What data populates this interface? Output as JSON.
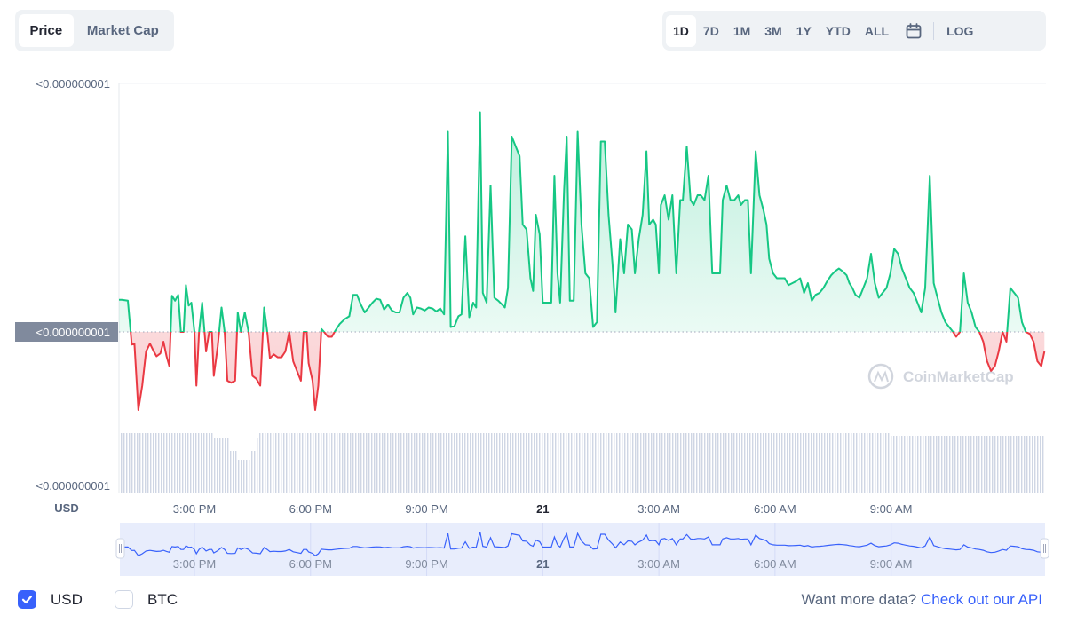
{
  "tabs": [
    {
      "label": "Price",
      "active": true
    },
    {
      "label": "Market Cap",
      "active": false
    }
  ],
  "ranges": [
    {
      "label": "1D",
      "active": true
    },
    {
      "label": "7D",
      "active": false
    },
    {
      "label": "1M",
      "active": false
    },
    {
      "label": "3M",
      "active": false
    },
    {
      "label": "1Y",
      "active": false
    },
    {
      "label": "YTD",
      "active": false
    },
    {
      "label": "ALL",
      "active": false
    }
  ],
  "calendar_icon": "calendar-icon",
  "log_label": "LOG",
  "footer": {
    "usd_label": "USD",
    "btc_label": "BTC",
    "usd_checked": true,
    "btc_checked": false,
    "api_prefix": "Want more data?",
    "api_link": "Check out our API"
  },
  "colors": {
    "up": "#16c784",
    "down": "#ea3943",
    "accent": "#3861fb",
    "volume": "#cfd6e4",
    "navigator": "#e3e9fe"
  },
  "chart_data": {
    "type": "line",
    "watermark": "CoinMarketCap",
    "y_ticks": [
      "<0.000000001",
      "<0.000000001",
      "<0.000000001"
    ],
    "current_price_label": "<0.000000001",
    "y_unit": "USD",
    "baseline": 0.0,
    "ylim": [
      -1.0,
      2.4
    ],
    "x_ticks": [
      "3:00 PM",
      "6:00 PM",
      "9:00 PM",
      "21",
      "3:00 AM",
      "6:00 AM",
      "9:00 AM"
    ],
    "x_tick_hours": [
      15,
      18,
      21,
      24,
      27,
      30,
      33
    ],
    "xlim_hours": [
      13.05,
      37.0
    ],
    "navigator_ticks": [
      "3:00 PM",
      "6:00 PM",
      "9:00 PM",
      "21",
      "3:00 AM",
      "6:00 AM",
      "9:00 AM"
    ],
    "price_note": "relative to the dotted opening reference line (values not printed on chart)",
    "price": [
      [
        13.05,
        0.33
      ],
      [
        13.12,
        0.33
      ],
      [
        13.28,
        0.32
      ],
      [
        13.38,
        -0.13
      ],
      [
        13.45,
        -0.12
      ],
      [
        13.55,
        -0.8
      ],
      [
        13.65,
        -0.55
      ],
      [
        13.75,
        -0.2
      ],
      [
        13.85,
        -0.12
      ],
      [
        13.95,
        -0.2
      ],
      [
        14.02,
        -0.25
      ],
      [
        14.12,
        -0.22
      ],
      [
        14.2,
        -0.1
      ],
      [
        14.28,
        -0.25
      ],
      [
        14.35,
        -0.35
      ],
      [
        14.42,
        0.37
      ],
      [
        14.5,
        0.32
      ],
      [
        14.58,
        0.38
      ],
      [
        14.65,
        0.0
      ],
      [
        14.72,
        0.0
      ],
      [
        14.78,
        0.48
      ],
      [
        14.85,
        0.27
      ],
      [
        14.92,
        0.3
      ],
      [
        15.0,
        0.0
      ],
      [
        15.05,
        -0.55
      ],
      [
        15.12,
        0.0
      ],
      [
        15.2,
        0.3
      ],
      [
        15.3,
        -0.2
      ],
      [
        15.38,
        0.0
      ],
      [
        15.45,
        0.0
      ],
      [
        15.5,
        -0.45
      ],
      [
        15.6,
        -0.15
      ],
      [
        15.7,
        0.25
      ],
      [
        15.78,
        0.0
      ],
      [
        15.85,
        -0.5
      ],
      [
        15.95,
        -0.52
      ],
      [
        16.05,
        -0.5
      ],
      [
        16.12,
        0.2
      ],
      [
        16.2,
        0.0
      ],
      [
        16.3,
        0.2
      ],
      [
        16.4,
        0.0
      ],
      [
        16.5,
        -0.45
      ],
      [
        16.6,
        -0.48
      ],
      [
        16.7,
        -0.55
      ],
      [
        16.8,
        0.25
      ],
      [
        16.88,
        0.0
      ],
      [
        16.95,
        -0.27
      ],
      [
        17.05,
        -0.23
      ],
      [
        17.15,
        -0.26
      ],
      [
        17.25,
        -0.26
      ],
      [
        17.35,
        -0.2
      ],
      [
        17.45,
        0.0
      ],
      [
        17.55,
        -0.3
      ],
      [
        17.65,
        -0.4
      ],
      [
        17.75,
        -0.5
      ],
      [
        17.82,
        0.0
      ],
      [
        17.9,
        0.0
      ],
      [
        17.95,
        -0.32
      ],
      [
        18.05,
        -0.5
      ],
      [
        18.12,
        -0.8
      ],
      [
        18.2,
        -0.55
      ],
      [
        18.28,
        0.03
      ],
      [
        18.35,
        0.0
      ],
      [
        18.45,
        -0.05
      ],
      [
        18.55,
        -0.05
      ],
      [
        18.62,
        0.0
      ],
      [
        18.75,
        0.08
      ],
      [
        18.88,
        0.13
      ],
      [
        19.0,
        0.16
      ],
      [
        19.1,
        0.38
      ],
      [
        19.2,
        0.38
      ],
      [
        19.3,
        0.28
      ],
      [
        19.4,
        0.2
      ],
      [
        19.5,
        0.25
      ],
      [
        19.6,
        0.3
      ],
      [
        19.7,
        0.34
      ],
      [
        19.8,
        0.33
      ],
      [
        19.9,
        0.23
      ],
      [
        20.0,
        0.28
      ],
      [
        20.1,
        0.22
      ],
      [
        20.2,
        0.2
      ],
      [
        20.3,
        0.2
      ],
      [
        20.4,
        0.35
      ],
      [
        20.5,
        0.4
      ],
      [
        20.58,
        0.35
      ],
      [
        20.65,
        0.18
      ],
      [
        20.75,
        0.25
      ],
      [
        20.85,
        0.24
      ],
      [
        20.95,
        0.22
      ],
      [
        21.05,
        0.25
      ],
      [
        21.15,
        0.24
      ],
      [
        21.25,
        0.21
      ],
      [
        21.35,
        0.24
      ],
      [
        21.45,
        0.18
      ],
      [
        21.55,
        2.05
      ],
      [
        21.62,
        0.05
      ],
      [
        21.72,
        0.06
      ],
      [
        21.82,
        0.16
      ],
      [
        21.9,
        0.18
      ],
      [
        22.0,
        0.98
      ],
      [
        22.1,
        0.15
      ],
      [
        22.2,
        0.3
      ],
      [
        22.28,
        0.25
      ],
      [
        22.38,
        2.25
      ],
      [
        22.45,
        0.4
      ],
      [
        22.55,
        0.3
      ],
      [
        22.65,
        1.5
      ],
      [
        22.75,
        0.35
      ],
      [
        22.85,
        0.32
      ],
      [
        22.95,
        0.28
      ],
      [
        23.02,
        0.25
      ],
      [
        23.1,
        0.45
      ],
      [
        23.2,
        2.0
      ],
      [
        23.3,
        1.9
      ],
      [
        23.4,
        1.8
      ],
      [
        23.48,
        1.1
      ],
      [
        23.58,
        1.05
      ],
      [
        23.68,
        0.55
      ],
      [
        23.75,
        0.42
      ],
      [
        23.82,
        1.2
      ],
      [
        23.92,
        1.0
      ],
      [
        24.0,
        0.3
      ],
      [
        24.08,
        0.3
      ],
      [
        24.15,
        0.3
      ],
      [
        24.22,
        0.3
      ],
      [
        24.3,
        1.6
      ],
      [
        24.38,
        0.6
      ],
      [
        24.45,
        0.3
      ],
      [
        24.55,
        1.45
      ],
      [
        24.62,
        2.0
      ],
      [
        24.7,
        0.32
      ],
      [
        24.8,
        0.32
      ],
      [
        24.9,
        2.05
      ],
      [
        25.0,
        1.1
      ],
      [
        25.1,
        0.6
      ],
      [
        25.2,
        0.55
      ],
      [
        25.3,
        0.05
      ],
      [
        25.4,
        0.1
      ],
      [
        25.5,
        1.95
      ],
      [
        25.6,
        1.95
      ],
      [
        25.7,
        1.2
      ],
      [
        25.8,
        0.7
      ],
      [
        25.88,
        0.2
      ],
      [
        26.0,
        0.95
      ],
      [
        26.1,
        0.6
      ],
      [
        26.2,
        1.1
      ],
      [
        26.3,
        1.05
      ],
      [
        26.38,
        0.6
      ],
      [
        26.48,
        0.95
      ],
      [
        26.58,
        1.2
      ],
      [
        26.68,
        1.85
      ],
      [
        26.75,
        1.1
      ],
      [
        26.85,
        1.15
      ],
      [
        26.92,
        1.1
      ],
      [
        27.0,
        0.6
      ],
      [
        27.05,
        1.3
      ],
      [
        27.15,
        1.4
      ],
      [
        27.25,
        1.15
      ],
      [
        27.35,
        1.4
      ],
      [
        27.45,
        0.6
      ],
      [
        27.55,
        1.35
      ],
      [
        27.62,
        1.35
      ],
      [
        27.72,
        1.9
      ],
      [
        27.82,
        1.35
      ],
      [
        27.9,
        1.3
      ],
      [
        28.0,
        1.4
      ],
      [
        28.08,
        1.4
      ],
      [
        28.18,
        1.35
      ],
      [
        28.28,
        1.6
      ],
      [
        28.38,
        0.6
      ],
      [
        28.48,
        0.6
      ],
      [
        28.58,
        0.6
      ],
      [
        28.65,
        1.35
      ],
      [
        28.75,
        1.5
      ],
      [
        28.85,
        1.35
      ],
      [
        28.95,
        1.35
      ],
      [
        29.05,
        1.4
      ],
      [
        29.12,
        1.3
      ],
      [
        29.22,
        1.35
      ],
      [
        29.3,
        1.35
      ],
      [
        29.38,
        0.6
      ],
      [
        29.5,
        1.85
      ],
      [
        29.6,
        1.4
      ],
      [
        29.7,
        1.25
      ],
      [
        29.78,
        1.1
      ],
      [
        29.85,
        0.75
      ],
      [
        29.95,
        0.6
      ],
      [
        30.05,
        0.55
      ],
      [
        30.15,
        0.55
      ],
      [
        30.25,
        0.55
      ],
      [
        30.35,
        0.48
      ],
      [
        30.45,
        0.5
      ],
      [
        30.55,
        0.52
      ],
      [
        30.65,
        0.55
      ],
      [
        30.75,
        0.4
      ],
      [
        30.85,
        0.5
      ],
      [
        30.95,
        0.32
      ],
      [
        31.05,
        0.38
      ],
      [
        31.15,
        0.4
      ],
      [
        31.25,
        0.45
      ],
      [
        31.35,
        0.52
      ],
      [
        31.45,
        0.58
      ],
      [
        31.55,
        0.62
      ],
      [
        31.65,
        0.65
      ],
      [
        31.75,
        0.62
      ],
      [
        31.85,
        0.58
      ],
      [
        31.92,
        0.5
      ],
      [
        32.0,
        0.45
      ],
      [
        32.08,
        0.38
      ],
      [
        32.18,
        0.35
      ],
      [
        32.28,
        0.45
      ],
      [
        32.38,
        0.55
      ],
      [
        32.48,
        0.8
      ],
      [
        32.58,
        0.5
      ],
      [
        32.68,
        0.35
      ],
      [
        32.78,
        0.4
      ],
      [
        32.88,
        0.45
      ],
      [
        32.98,
        0.6
      ],
      [
        33.08,
        0.85
      ],
      [
        33.18,
        0.8
      ],
      [
        33.28,
        0.65
      ],
      [
        33.38,
        0.55
      ],
      [
        33.48,
        0.45
      ],
      [
        33.58,
        0.4
      ],
      [
        33.68,
        0.3
      ],
      [
        33.78,
        0.2
      ],
      [
        33.88,
        0.45
      ],
      [
        34.0,
        1.6
      ],
      [
        34.1,
        0.5
      ],
      [
        34.2,
        0.35
      ],
      [
        34.3,
        0.2
      ],
      [
        34.4,
        0.1
      ],
      [
        34.5,
        0.05
      ],
      [
        34.6,
        0.0
      ],
      [
        34.68,
        -0.05
      ],
      [
        34.78,
        0.0
      ],
      [
        34.88,
        0.6
      ],
      [
        34.98,
        0.3
      ],
      [
        35.08,
        0.2
      ],
      [
        35.18,
        0.05
      ],
      [
        35.28,
        0.0
      ],
      [
        35.38,
        -0.1
      ],
      [
        35.48,
        -0.3
      ],
      [
        35.58,
        -0.4
      ],
      [
        35.68,
        -0.35
      ],
      [
        35.78,
        -0.2
      ],
      [
        35.88,
        0.0
      ],
      [
        35.98,
        -0.1
      ],
      [
        36.08,
        0.45
      ],
      [
        36.18,
        0.4
      ],
      [
        36.28,
        0.35
      ],
      [
        36.38,
        0.1
      ],
      [
        36.48,
        0.0
      ],
      [
        36.58,
        -0.02
      ],
      [
        36.68,
        -0.1
      ],
      [
        36.78,
        -0.3
      ],
      [
        36.88,
        -0.35
      ],
      [
        36.96,
        -0.2
      ]
    ]
  }
}
